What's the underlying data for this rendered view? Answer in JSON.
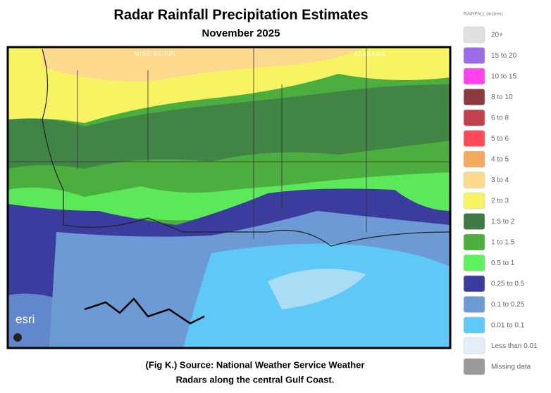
{
  "header": {
    "title": "Radar Rainfall Precipitation Estimates",
    "subtitle": "November 2025"
  },
  "map": {
    "labels": [
      "MISSISSIPPI",
      "ALABAMA"
    ],
    "attribution": "esri"
  },
  "legend": {
    "title": "RAINFALL (inches)",
    "items": [
      {
        "label": "20+",
        "color": "#e0e0e0"
      },
      {
        "label": "15 to 20",
        "color": "#9b6be8"
      },
      {
        "label": "10 to 15",
        "color": "#ff44ee"
      },
      {
        "label": "8 to 10",
        "color": "#8c3b40"
      },
      {
        "label": "6 to 8",
        "color": "#c0404c"
      },
      {
        "label": "5 to 6",
        "color": "#ff4a5a"
      },
      {
        "label": "4 to 5",
        "color": "#f4a95c"
      },
      {
        "label": "3 to 4",
        "color": "#fcd98c"
      },
      {
        "label": "2 to 3",
        "color": "#f6f462"
      },
      {
        "label": "1.5 to 2",
        "color": "#3e7a48"
      },
      {
        "label": "1 to 1.5",
        "color": "#4cae3e"
      },
      {
        "label": "0.5 to 1",
        "color": "#5ef25e"
      },
      {
        "label": "0.25 to 0.5",
        "color": "#3c3c9e"
      },
      {
        "label": "0.1 to 0.25",
        "color": "#6b9ad4"
      },
      {
        "label": "0.01 to 0.1",
        "color": "#5ec8f6"
      },
      {
        "label": "Less than 0.01",
        "color": "#e4eef8"
      },
      {
        "label": "Missing data",
        "color": "#9a9a9a"
      }
    ]
  },
  "caption": {
    "lines": [
      "(Fig K.) Source: National Weather Service Weather",
      "Radars along the central Gulf Coast."
    ]
  }
}
